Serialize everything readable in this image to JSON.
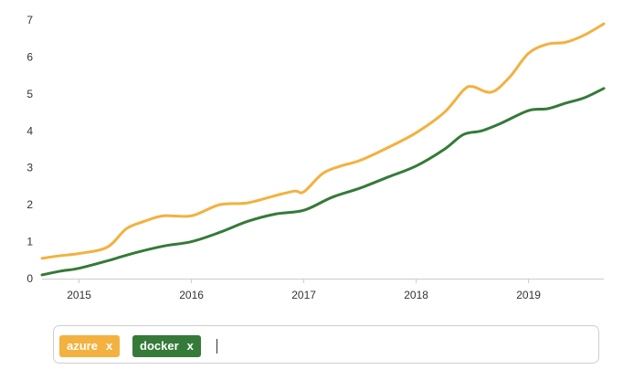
{
  "chart_data": {
    "type": "line",
    "title": "",
    "xlabel": "",
    "ylabel": "",
    "x_ticks": [
      "2015",
      "2016",
      "2017",
      "2018",
      "2019"
    ],
    "y_ticks": [
      "0",
      "1",
      "2",
      "3",
      "4",
      "5",
      "6",
      "7"
    ],
    "xlim": [
      2014.67,
      2019.67
    ],
    "ylim": [
      0,
      7
    ],
    "grid": false,
    "series": [
      {
        "name": "azure",
        "color": "#f3b13f",
        "x": [
          2014.67,
          2014.83,
          2015.0,
          2015.25,
          2015.42,
          2015.58,
          2015.75,
          2016.0,
          2016.25,
          2016.5,
          2016.75,
          2016.92,
          2017.0,
          2017.17,
          2017.33,
          2017.5,
          2017.75,
          2018.0,
          2018.25,
          2018.42,
          2018.5,
          2018.67,
          2018.83,
          2019.0,
          2019.17,
          2019.33,
          2019.5,
          2019.67
        ],
        "values": [
          0.55,
          0.62,
          0.68,
          0.85,
          1.35,
          1.55,
          1.7,
          1.7,
          2.0,
          2.05,
          2.25,
          2.37,
          2.35,
          2.85,
          3.05,
          3.2,
          3.55,
          3.95,
          4.5,
          5.1,
          5.2,
          5.05,
          5.45,
          6.1,
          6.35,
          6.4,
          6.6,
          6.9
        ]
      },
      {
        "name": "docker",
        "color": "#357a38",
        "x": [
          2014.67,
          2014.83,
          2015.0,
          2015.25,
          2015.5,
          2015.75,
          2016.0,
          2016.25,
          2016.5,
          2016.75,
          2017.0,
          2017.25,
          2017.5,
          2017.75,
          2018.0,
          2018.25,
          2018.42,
          2018.58,
          2018.75,
          2019.0,
          2019.17,
          2019.33,
          2019.5,
          2019.67
        ],
        "values": [
          0.1,
          0.2,
          0.28,
          0.48,
          0.7,
          0.88,
          1.0,
          1.25,
          1.55,
          1.75,
          1.85,
          2.2,
          2.45,
          2.75,
          3.05,
          3.5,
          3.9,
          4.0,
          4.2,
          4.55,
          4.6,
          4.75,
          4.9,
          5.15
        ]
      }
    ]
  },
  "tags": [
    {
      "label": "azure",
      "remove": "x",
      "color": "#f3b13f"
    },
    {
      "label": "docker",
      "remove": "x",
      "color": "#357a38"
    }
  ],
  "input": {
    "value": ""
  }
}
